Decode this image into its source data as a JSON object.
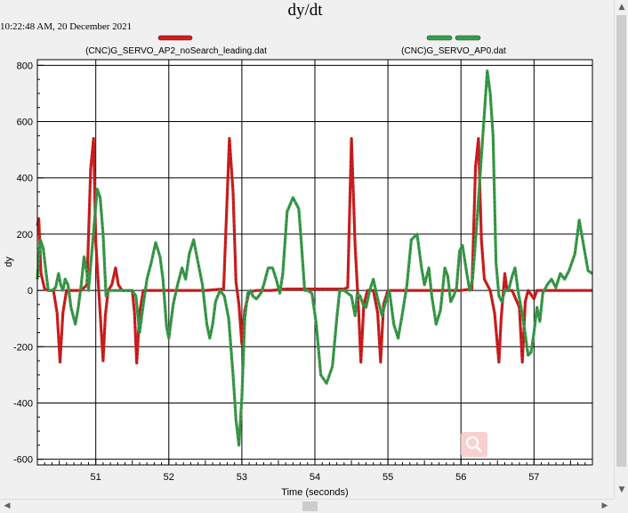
{
  "window": {
    "timestamp": "10:22:48 AM, 20 December 2021"
  },
  "chart_data": {
    "type": "line",
    "title": "dy/dt",
    "xlabel": "Time (seconds)",
    "ylabel": "dy",
    "xlim": [
      50.2,
      57.8
    ],
    "ylim": [
      -620,
      820
    ],
    "x_ticks": [
      51,
      52,
      53,
      54,
      55,
      56,
      57
    ],
    "y_ticks": [
      -600,
      -400,
      -200,
      0,
      200,
      400,
      600,
      800
    ],
    "grid": true,
    "legend_position": "top",
    "series": [
      {
        "name": "(CNC)G_SERVO_AP2_noSearch_leading.dat",
        "color": "#cc1f1f",
        "points": [
          [
            50.2,
            230
          ],
          [
            50.22,
            255
          ],
          [
            50.25,
            60
          ],
          [
            50.3,
            5
          ],
          [
            50.35,
            0
          ],
          [
            50.42,
            0
          ],
          [
            50.47,
            -80
          ],
          [
            50.51,
            -255
          ],
          [
            50.55,
            -80
          ],
          [
            50.6,
            0
          ],
          [
            50.8,
            0
          ],
          [
            50.88,
            20
          ],
          [
            50.93,
            430
          ],
          [
            50.97,
            540
          ],
          [
            51.0,
            170
          ],
          [
            51.05,
            -40
          ],
          [
            51.1,
            -250
          ],
          [
            51.13,
            -90
          ],
          [
            51.17,
            0
          ],
          [
            51.22,
            20
          ],
          [
            51.27,
            80
          ],
          [
            51.31,
            20
          ],
          [
            51.36,
            0
          ],
          [
            51.5,
            0
          ],
          [
            51.53,
            -80
          ],
          [
            51.56,
            -258
          ],
          [
            51.6,
            -80
          ],
          [
            51.65,
            0
          ],
          [
            51.8,
            0
          ],
          [
            52.2,
            0
          ],
          [
            52.5,
            0
          ],
          [
            52.75,
            5
          ],
          [
            52.83,
            540
          ],
          [
            52.88,
            350
          ],
          [
            52.92,
            30
          ],
          [
            52.96,
            -50
          ],
          [
            53.0,
            -190
          ],
          [
            53.04,
            -70
          ],
          [
            53.1,
            -5
          ],
          [
            53.2,
            0
          ],
          [
            53.4,
            0
          ],
          [
            53.6,
            5
          ],
          [
            53.8,
            5
          ],
          [
            54.0,
            5
          ],
          [
            54.2,
            5
          ],
          [
            54.4,
            5
          ],
          [
            54.45,
            10
          ],
          [
            54.5,
            540
          ],
          [
            54.55,
            160
          ],
          [
            54.6,
            -80
          ],
          [
            54.63,
            -255
          ],
          [
            54.67,
            -50
          ],
          [
            54.72,
            0
          ],
          [
            54.8,
            0
          ],
          [
            54.86,
            -80
          ],
          [
            54.9,
            -255
          ],
          [
            54.94,
            -50
          ],
          [
            55.0,
            0
          ],
          [
            55.5,
            0
          ],
          [
            55.8,
            0
          ],
          [
            56.0,
            0
          ],
          [
            56.15,
            5
          ],
          [
            56.2,
            440
          ],
          [
            56.24,
            540
          ],
          [
            56.28,
            180
          ],
          [
            56.32,
            40
          ],
          [
            56.4,
            0
          ],
          [
            56.46,
            -80
          ],
          [
            56.52,
            -255
          ],
          [
            56.55,
            -100
          ],
          [
            56.6,
            60
          ],
          [
            56.63,
            0
          ],
          [
            56.7,
            0
          ],
          [
            56.8,
            -60
          ],
          [
            56.84,
            -255
          ],
          [
            56.88,
            -40
          ],
          [
            56.92,
            0
          ],
          [
            57.0,
            -30
          ],
          [
            57.04,
            0
          ],
          [
            57.5,
            0
          ],
          [
            57.8,
            0
          ]
        ]
      },
      {
        "name": "(CNC)G_SERVO_AP0.dat",
        "color": "#3a9a4a",
        "points": [
          [
            50.2,
            40
          ],
          [
            50.24,
            180
          ],
          [
            50.28,
            150
          ],
          [
            50.32,
            60
          ],
          [
            50.35,
            0
          ],
          [
            50.4,
            0
          ],
          [
            50.45,
            10
          ],
          [
            50.49,
            60
          ],
          [
            50.52,
            20
          ],
          [
            50.55,
            0
          ],
          [
            50.58,
            40
          ],
          [
            50.62,
            20
          ],
          [
            50.66,
            -60
          ],
          [
            50.72,
            -120
          ],
          [
            50.76,
            -60
          ],
          [
            50.8,
            20
          ],
          [
            50.84,
            120
          ],
          [
            50.88,
            60
          ],
          [
            50.9,
            0
          ],
          [
            50.95,
            150
          ],
          [
            51.02,
            360
          ],
          [
            51.06,
            330
          ],
          [
            51.1,
            200
          ],
          [
            51.14,
            -20
          ],
          [
            51.18,
            0
          ],
          [
            51.25,
            0
          ],
          [
            51.4,
            0
          ],
          [
            51.5,
            0
          ],
          [
            51.55,
            -20
          ],
          [
            51.6,
            -150
          ],
          [
            51.65,
            -50
          ],
          [
            51.7,
            40
          ],
          [
            51.76,
            100
          ],
          [
            51.82,
            170
          ],
          [
            51.88,
            120
          ],
          [
            51.92,
            40
          ],
          [
            51.97,
            -130
          ],
          [
            52.0,
            -170
          ],
          [
            52.06,
            -50
          ],
          [
            52.12,
            20
          ],
          [
            52.18,
            80
          ],
          [
            52.23,
            40
          ],
          [
            52.28,
            130
          ],
          [
            52.34,
            180
          ],
          [
            52.4,
            100
          ],
          [
            52.46,
            20
          ],
          [
            52.52,
            -120
          ],
          [
            52.56,
            -170
          ],
          [
            52.6,
            -120
          ],
          [
            52.64,
            -40
          ],
          [
            52.7,
            0
          ],
          [
            52.76,
            -20
          ],
          [
            52.82,
            -100
          ],
          [
            52.88,
            -300
          ],
          [
            52.92,
            -460
          ],
          [
            52.96,
            -550
          ],
          [
            53.0,
            -380
          ],
          [
            53.04,
            -100
          ],
          [
            53.08,
            -10
          ],
          [
            53.12,
            0
          ],
          [
            53.15,
            -20
          ],
          [
            53.2,
            -30
          ],
          [
            53.26,
            -10
          ],
          [
            53.3,
            20
          ],
          [
            53.36,
            80
          ],
          [
            53.42,
            80
          ],
          [
            53.47,
            40
          ],
          [
            53.52,
            -10
          ],
          [
            53.56,
            60
          ],
          [
            53.62,
            280
          ],
          [
            53.7,
            330
          ],
          [
            53.78,
            290
          ],
          [
            53.82,
            150
          ],
          [
            53.86,
            0
          ],
          [
            53.9,
            0
          ],
          [
            53.96,
            -10
          ],
          [
            54.02,
            -120
          ],
          [
            54.08,
            -300
          ],
          [
            54.16,
            -330
          ],
          [
            54.24,
            -270
          ],
          [
            54.3,
            -100
          ],
          [
            54.34,
            0
          ],
          [
            54.4,
            0
          ],
          [
            54.5,
            -20
          ],
          [
            54.55,
            -90
          ],
          [
            54.58,
            -10
          ],
          [
            54.62,
            -20
          ],
          [
            54.66,
            -50
          ],
          [
            54.7,
            -60
          ],
          [
            54.75,
            0
          ],
          [
            54.8,
            40
          ],
          [
            54.86,
            -30
          ],
          [
            54.92,
            -90
          ],
          [
            54.97,
            -40
          ],
          [
            55.02,
            0
          ],
          [
            55.08,
            -120
          ],
          [
            55.14,
            -170
          ],
          [
            55.2,
            -80
          ],
          [
            55.26,
            20
          ],
          [
            55.32,
            180
          ],
          [
            55.4,
            200
          ],
          [
            55.46,
            80
          ],
          [
            55.5,
            20
          ],
          [
            55.56,
            80
          ],
          [
            55.6,
            -20
          ],
          [
            55.66,
            -120
          ],
          [
            55.72,
            -70
          ],
          [
            55.78,
            80
          ],
          [
            55.82,
            50
          ],
          [
            55.86,
            -40
          ],
          [
            55.9,
            -20
          ],
          [
            55.94,
            10
          ],
          [
            55.98,
            140
          ],
          [
            56.02,
            160
          ],
          [
            56.08,
            60
          ],
          [
            56.12,
            0
          ],
          [
            56.16,
            40
          ],
          [
            56.22,
            250
          ],
          [
            56.3,
            550
          ],
          [
            56.36,
            780
          ],
          [
            56.4,
            700
          ],
          [
            56.44,
            550
          ],
          [
            56.48,
            100
          ],
          [
            56.52,
            -20
          ],
          [
            56.56,
            -40
          ],
          [
            56.6,
            0
          ],
          [
            56.65,
            0
          ],
          [
            56.7,
            50
          ],
          [
            56.74,
            80
          ],
          [
            56.78,
            0
          ],
          [
            56.85,
            -100
          ],
          [
            56.92,
            -230
          ],
          [
            56.96,
            -220
          ],
          [
            57.0,
            -150
          ],
          [
            57.04,
            -60
          ],
          [
            57.08,
            -110
          ],
          [
            57.12,
            -10
          ],
          [
            57.18,
            20
          ],
          [
            57.24,
            40
          ],
          [
            57.3,
            10
          ],
          [
            57.36,
            60
          ],
          [
            57.42,
            40
          ],
          [
            57.48,
            70
          ],
          [
            57.56,
            130
          ],
          [
            57.62,
            250
          ],
          [
            57.68,
            160
          ],
          [
            57.74,
            70
          ],
          [
            57.8,
            60
          ]
        ]
      }
    ]
  }
}
